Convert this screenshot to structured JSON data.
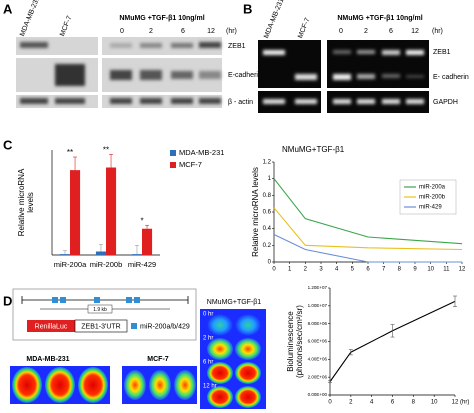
{
  "panels": {
    "a": "A",
    "b": "B",
    "c": "C",
    "d": "D"
  },
  "blot_a": {
    "cell_lines": [
      "MDA-MB-231",
      "MCF-7"
    ],
    "treatment": "NMuMG +TGF-β1 10ng/ml",
    "times": [
      "0",
      "2",
      "6",
      "12"
    ],
    "unit": "(hr)",
    "rows": [
      "ZEB1",
      "E-cadherin",
      "β - actin"
    ]
  },
  "blot_b": {
    "cell_lines": [
      "MDA-MB-231",
      "MCF-7"
    ],
    "treatment": "NMuMG +TGF-β1 10ng/ml",
    "times": [
      "0",
      "2",
      "6",
      "12"
    ],
    "unit": "(hr)",
    "rows": [
      "ZEB1",
      "E- cadherin",
      "GAPDH"
    ]
  },
  "construct": {
    "length": "1.9 kb",
    "reporter": "RenillaLuc",
    "utr": "ZEB1-3'UTR",
    "sites": "miR-200a/b/429"
  },
  "imaging": {
    "cell_lines": [
      "MDA-MB-231",
      "MCF-7"
    ],
    "treatment": "NMuMG+TGF-β1",
    "times": [
      "0 hr",
      "2 hr",
      "6 hr",
      "12 hr"
    ]
  },
  "chart_data": [
    {
      "type": "bar",
      "y_label": [
        "Relative microRNA",
        "levels"
      ],
      "categories": [
        "miR-200a",
        "miR-200b",
        "miR-429"
      ],
      "series": [
        {
          "name": "MDA-MB-231",
          "color": "#2e6fb7",
          "values": [
            0.01,
            0.04,
            0.01
          ],
          "errors": [
            0.04,
            0.08,
            0.1
          ]
        },
        {
          "name": "MCF-7",
          "color": "#e02020",
          "values": [
            0.97,
            1.0,
            0.3
          ],
          "errors": [
            0.15,
            0.15,
            0.04
          ]
        }
      ],
      "annotations": [
        "**",
        "**",
        "*"
      ],
      "ylim": [
        0,
        1.2
      ]
    },
    {
      "type": "line",
      "title": "NMuMG+TGF-β1",
      "y_label": "Relative microRNA levels",
      "x": [
        0,
        2,
        6,
        12
      ],
      "xlim": [
        0,
        12
      ],
      "xticks": [
        0,
        1,
        2,
        3,
        4,
        5,
        6,
        7,
        8,
        9,
        10,
        11,
        12
      ],
      "ylim": [
        0,
        1.2
      ],
      "yticks": [
        0,
        0.2,
        0.4,
        0.6,
        0.8,
        1,
        1.2
      ],
      "legend": "upper right",
      "series": [
        {
          "name": "miR-200a",
          "color": "#3aa64a",
          "values": [
            1.0,
            0.52,
            0.3,
            0.22
          ]
        },
        {
          "name": "miR-200b",
          "color": "#e8c020",
          "values": [
            0.65,
            0.2,
            0.17,
            0.15
          ]
        },
        {
          "name": "miR-429",
          "color": "#6a8fd8",
          "values": [
            0.33,
            0.15,
            0.0,
            0.0
          ]
        }
      ]
    },
    {
      "type": "line",
      "y_label": [
        "Bioluminescence",
        "(photons/sec/cm²/sr)"
      ],
      "x_label": "(hr)",
      "x": [
        0,
        2,
        6,
        12
      ],
      "xlim": [
        0,
        12
      ],
      "xticks": [
        0,
        2,
        4,
        6,
        8,
        10,
        12
      ],
      "ylim": [
        0,
        12000000
      ],
      "yticks": [
        {
          "value": 0,
          "label": "0.00E+00"
        },
        {
          "value": 2000000,
          "label": "2.00E+06"
        },
        {
          "value": 4000000,
          "label": "4.00E+06"
        },
        {
          "value": 6000000,
          "label": "6.00E+06"
        },
        {
          "value": 8000000,
          "label": "8.00E+06"
        },
        {
          "value": 10000000,
          "label": "1.00E+07"
        },
        {
          "value": 12000000,
          "label": "1.20E+07"
        }
      ],
      "series": [
        {
          "color": "#000000",
          "values": [
            1500000,
            4800000,
            7200000,
            10500000
          ],
          "errors": [
            100000,
            300000,
            700000,
            600000
          ]
        }
      ]
    }
  ]
}
